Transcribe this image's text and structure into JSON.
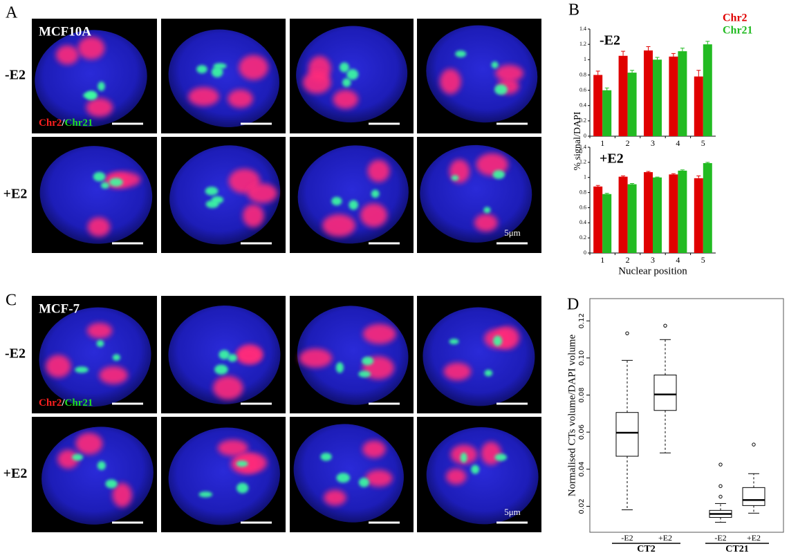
{
  "panels": {
    "a": "A",
    "b": "B",
    "c": "C",
    "d": "D"
  },
  "panel_a": {
    "cell_line": "MCF10A",
    "rows": [
      "-E2",
      "+E2"
    ],
    "legend": {
      "red": "Chr2",
      "sep": "/",
      "green": "Chr21"
    },
    "scale": "5μm"
  },
  "panel_c": {
    "cell_line": "MCF-7",
    "rows": [
      "-E2",
      "+E2"
    ],
    "legend": {
      "red": "Chr2",
      "sep": "/",
      "green": "Chr21"
    },
    "scale": "5μm"
  },
  "chart_data": [
    {
      "type": "bar",
      "label": "-E2",
      "ylabel": "% signal/DAPI",
      "categories": [
        "1",
        "2",
        "3",
        "4",
        "5"
      ],
      "series": [
        {
          "name": "Chr2",
          "color": "#e00000",
          "values": [
            0.8,
            1.05,
            1.12,
            1.04,
            0.78
          ],
          "errors": [
            0.05,
            0.06,
            0.05,
            0.04,
            0.08
          ]
        },
        {
          "name": "Chr21",
          "color": "#22bb22",
          "values": [
            0.6,
            0.83,
            1.0,
            1.11,
            1.2
          ],
          "errors": [
            0.03,
            0.03,
            0.03,
            0.04,
            0.04
          ]
        }
      ],
      "ylim": [
        0,
        1.4
      ],
      "yticks": [
        0,
        0.2,
        0.4,
        0.6,
        0.8,
        1,
        1.2,
        1.4
      ]
    },
    {
      "type": "bar",
      "label": "+E2",
      "xlabel": "Nuclear position",
      "categories": [
        "1",
        "2",
        "3",
        "4",
        "5"
      ],
      "series": [
        {
          "color": "#e00000",
          "values": [
            0.88,
            1.01,
            1.07,
            1.04,
            0.99
          ],
          "errors": [
            0.015,
            0.01,
            0.01,
            0.01,
            0.03
          ]
        },
        {
          "color": "#22bb22",
          "values": [
            0.78,
            0.91,
            1.0,
            1.09,
            1.19
          ],
          "errors": [
            0.01,
            0.01,
            0.005,
            0.01,
            0.01
          ]
        }
      ],
      "ylim": [
        0,
        1.4
      ],
      "yticks": [
        0,
        0.2,
        0.4,
        0.6,
        0.8,
        1,
        1.2,
        1.4
      ]
    },
    {
      "type": "box",
      "ylabel": "Normalised CTs volume/DAPI volume",
      "categories": [
        "-E2",
        "+E2",
        "-E2",
        "+E2"
      ],
      "group_labels": [
        "CT2",
        "CT21"
      ],
      "boxes": [
        {
          "min": 0.0181,
          "q1": 0.047,
          "median": 0.0597,
          "q3": 0.0706,
          "max": 0.0987,
          "outliers": [
            0.1133
          ]
        },
        {
          "min": 0.0488,
          "q1": 0.0717,
          "median": 0.0803,
          "q3": 0.0908,
          "max": 0.1099,
          "outliers": [
            0.1174
          ]
        },
        {
          "min": 0.0114,
          "q1": 0.014,
          "median": 0.0159,
          "q3": 0.0178,
          "max": 0.0215,
          "outliers": [
            0.0252,
            0.0309,
            0.0425
          ]
        },
        {
          "min": 0.0163,
          "q1": 0.0204,
          "median": 0.0234,
          "q3": 0.0301,
          "max": 0.0376,
          "outliers": [
            0.0533
          ]
        }
      ],
      "ylim": [
        0.006,
        0.132
      ],
      "yticks": [
        0.02,
        0.04,
        0.06,
        0.08,
        {
          "value": 0.1,
          "label": "0.10"
        },
        0.12
      ]
    }
  ]
}
